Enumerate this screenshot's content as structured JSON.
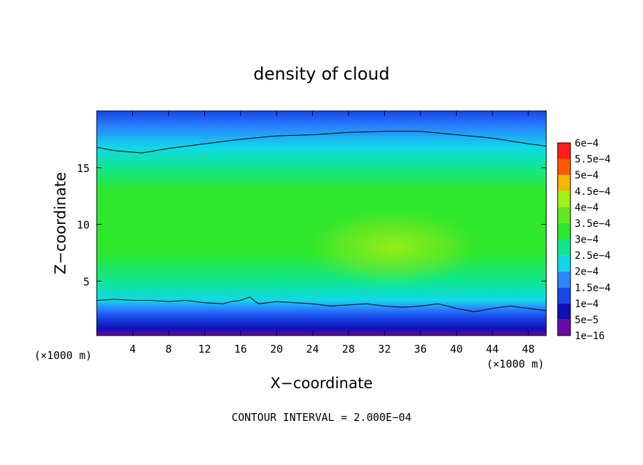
{
  "chart_data": {
    "type": "heatmap",
    "title": "density of cloud",
    "xlabel": "X−coordinate",
    "ylabel": "Z−coordinate",
    "x_unit_left": "(×1000 m)",
    "x_unit_right": "(×1000 m)",
    "footer": "CONTOUR INTERVAL = 2.000E−04",
    "xlim": [
      0,
      50
    ],
    "ylim": [
      0.2,
      20
    ],
    "x_ticks": [
      4,
      8,
      12,
      16,
      20,
      24,
      28,
      32,
      36,
      40,
      44,
      48
    ],
    "y_ticks": [
      5,
      10,
      15
    ],
    "colorbar": {
      "levels": [
        "1e−16",
        "5e−5",
        "1e−4",
        "1.5e−4",
        "2e−4",
        "2.5e−4",
        "3e−4",
        "3.5e−4",
        "4e−4",
        "4.5e−4",
        "5e−4",
        "5.5e−4",
        "6e−4"
      ],
      "colors": [
        "#6a0aa8",
        "#1010b8",
        "#1846e8",
        "#2a86ff",
        "#10d8e8",
        "#10e890",
        "#2ee82e",
        "#62e81c",
        "#a2f012",
        "#f0b800",
        "#ff5a00",
        "#ff1c1c",
        "#ff8a8a"
      ]
    },
    "contours": [
      {
        "level": "2e−4",
        "points": [
          [
            0,
            16.8
          ],
          [
            2,
            16.5
          ],
          [
            5,
            16.3
          ],
          [
            8,
            16.7
          ],
          [
            12,
            17.1
          ],
          [
            16,
            17.5
          ],
          [
            20,
            17.8
          ],
          [
            24,
            17.9
          ],
          [
            28,
            18.1
          ],
          [
            32,
            18.2
          ],
          [
            36,
            18.2
          ],
          [
            40,
            17.9
          ],
          [
            44,
            17.6
          ],
          [
            48,
            17.1
          ],
          [
            50,
            16.9
          ]
        ]
      },
      {
        "level": "2e−4",
        "points": [
          [
            0,
            3.3
          ],
          [
            2,
            3.4
          ],
          [
            4,
            3.3
          ],
          [
            6,
            3.3
          ],
          [
            8,
            3.2
          ],
          [
            10,
            3.3
          ],
          [
            12,
            3.1
          ],
          [
            14,
            3.0
          ],
          [
            15,
            3.2
          ],
          [
            16,
            3.3
          ],
          [
            17,
            3.6
          ],
          [
            18,
            3.0
          ],
          [
            20,
            3.2
          ],
          [
            22,
            3.1
          ],
          [
            24,
            3.0
          ],
          [
            26,
            2.8
          ],
          [
            28,
            2.9
          ],
          [
            30,
            3.0
          ],
          [
            32,
            2.8
          ],
          [
            34,
            2.7
          ],
          [
            36,
            2.8
          ],
          [
            38,
            3.0
          ],
          [
            40,
            2.6
          ],
          [
            42,
            2.3
          ],
          [
            44,
            2.6
          ],
          [
            46,
            2.8
          ],
          [
            48,
            2.6
          ],
          [
            50,
            2.4
          ]
        ]
      }
    ],
    "field_profile_by_z": [
      {
        "z": 0.2,
        "value": "1e−16"
      },
      {
        "z": 0.8,
        "value": "5e−5"
      },
      {
        "z": 1.8,
        "value": "1e−4"
      },
      {
        "z": 2.6,
        "value": "1.5e−4"
      },
      {
        "z": 3.3,
        "value": "2e−4"
      },
      {
        "z": 5.0,
        "value": "2.5e−4"
      },
      {
        "z": 7.5,
        "value": "3e−4"
      },
      {
        "z": 10.0,
        "value": "3e−4"
      },
      {
        "z": 13.0,
        "value": "3e−4"
      },
      {
        "z": 15.0,
        "value": "2.5e−4"
      },
      {
        "z": 16.8,
        "value": "2e−4"
      },
      {
        "z": 18.5,
        "value": "1.5e−4"
      },
      {
        "z": 20.0,
        "value": "1e−4"
      }
    ],
    "max_region": {
      "x": 33,
      "z": 8,
      "value": "4e−4"
    },
    "grid": false,
    "legend": "right colorbar"
  }
}
